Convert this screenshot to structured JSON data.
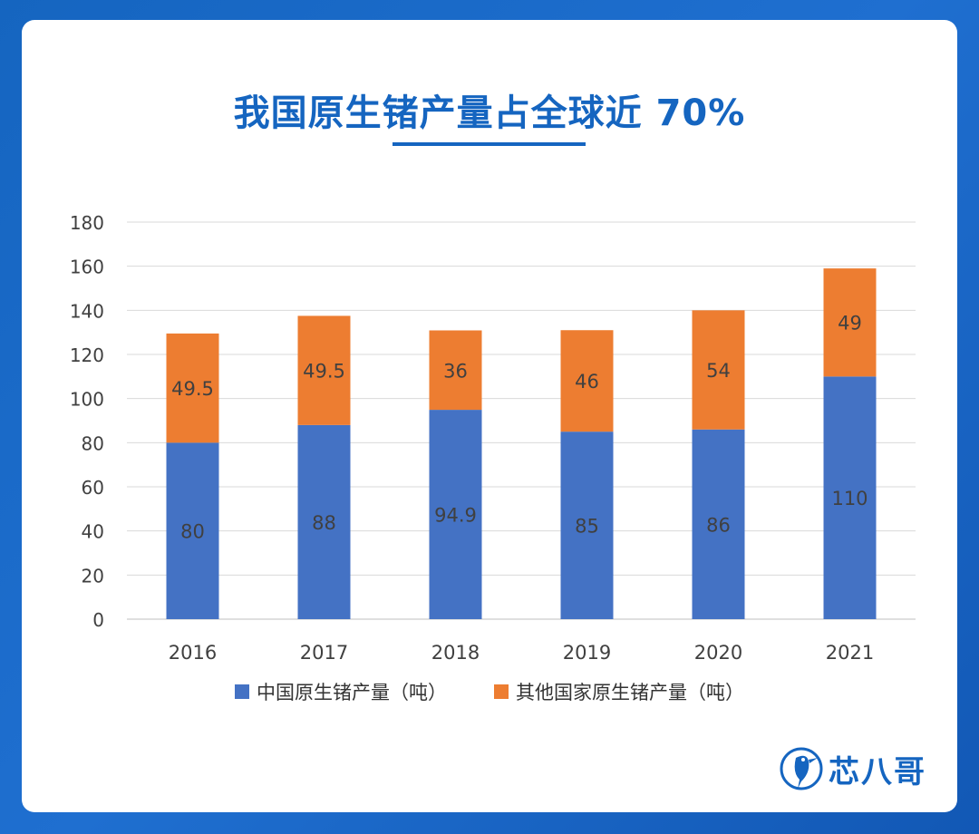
{
  "title": "我国原生锗产量占全球近 70%",
  "colors": {
    "china": "#4472c4",
    "other": "#ed7d31",
    "brand": "#1565c0"
  },
  "chart_data": {
    "type": "bar",
    "stacked": true,
    "categories": [
      "2016",
      "2017",
      "2018",
      "2019",
      "2020",
      "2021"
    ],
    "series": [
      {
        "name": "中国原生锗产量（吨）",
        "values": [
          80,
          88,
          94.9,
          85,
          86,
          110
        ]
      },
      {
        "name": "其他国家原生锗产量（吨）",
        "values": [
          49.5,
          49.5,
          36,
          46,
          54,
          49
        ]
      }
    ],
    "ylim": [
      0,
      180
    ],
    "yticks": [
      0,
      20,
      40,
      60,
      80,
      100,
      120,
      140,
      160,
      180
    ],
    "grid": true,
    "legend": "bottom"
  },
  "legend": {
    "china_label": "中国原生锗产量（吨）",
    "other_label": "其他国家原生锗产量（吨）"
  },
  "logo": {
    "text": "芯八哥",
    "icon": "bird-logo-icon"
  }
}
